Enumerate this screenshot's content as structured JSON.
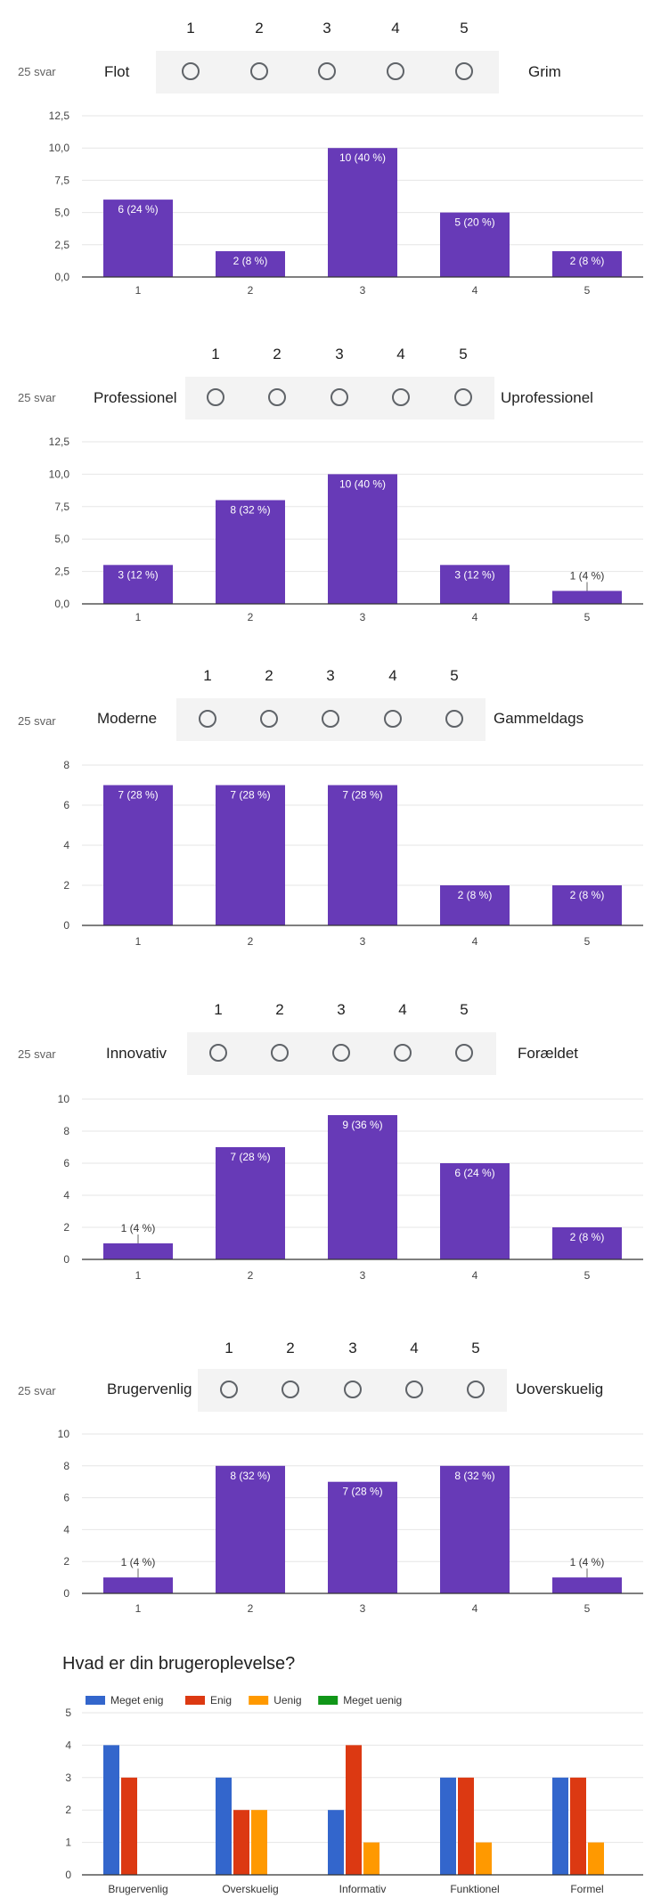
{
  "response_count": "25 svar",
  "scale_numbers": [
    "1",
    "2",
    "3",
    "4",
    "5"
  ],
  "questions": [
    {
      "left_label": "Flot",
      "right_label": "Grim",
      "chart_data": {
        "type": "bar",
        "categories": [
          "1",
          "2",
          "3",
          "4",
          "5"
        ],
        "values": [
          6,
          2,
          10,
          5,
          2
        ],
        "data_labels": [
          "6 (24 %)",
          "2 (8 %)",
          "10 (40 %)",
          "5 (20 %)",
          "2 (8 %)"
        ],
        "ylim": [
          0,
          12.5
        ],
        "yticks": [
          "0,0",
          "2,5",
          "5,0",
          "7,5",
          "10,0",
          "12,5"
        ],
        "grid": true
      }
    },
    {
      "left_label": "Professionel",
      "right_label": "Uprofessionel",
      "chart_data": {
        "type": "bar",
        "categories": [
          "1",
          "2",
          "3",
          "4",
          "5"
        ],
        "values": [
          3,
          8,
          10,
          3,
          1
        ],
        "data_labels": [
          "3 (12 %)",
          "8 (32 %)",
          "10 (40 %)",
          "3 (12 %)",
          "1 (4 %)"
        ],
        "ylim": [
          0,
          12.5
        ],
        "yticks": [
          "0,0",
          "2,5",
          "5,0",
          "7,5",
          "10,0",
          "12,5"
        ],
        "grid": true
      }
    },
    {
      "left_label": "Moderne",
      "right_label": "Gammeldags",
      "chart_data": {
        "type": "bar",
        "categories": [
          "1",
          "2",
          "3",
          "4",
          "5"
        ],
        "values": [
          7,
          7,
          7,
          2,
          2
        ],
        "data_labels": [
          "7 (28 %)",
          "7 (28 %)",
          "7 (28 %)",
          "2 (8 %)",
          "2 (8 %)"
        ],
        "ylim": [
          0,
          8
        ],
        "yticks": [
          "0",
          "2",
          "4",
          "6",
          "8"
        ],
        "grid": true
      }
    },
    {
      "left_label": "Innovativ",
      "right_label": "Forældet",
      "chart_data": {
        "type": "bar",
        "categories": [
          "1",
          "2",
          "3",
          "4",
          "5"
        ],
        "values": [
          1,
          7,
          9,
          6,
          2
        ],
        "data_labels": [
          "1 (4 %)",
          "7 (28 %)",
          "9 (36 %)",
          "6 (24 %)",
          "2 (8 %)"
        ],
        "ylim": [
          0,
          10
        ],
        "yticks": [
          "0",
          "2",
          "4",
          "6",
          "8",
          "10"
        ],
        "grid": true
      }
    },
    {
      "left_label": "Brugervenlig",
      "right_label": "Uoverskuelig",
      "chart_data": {
        "type": "bar",
        "categories": [
          "1",
          "2",
          "3",
          "4",
          "5"
        ],
        "values": [
          1,
          8,
          7,
          8,
          1
        ],
        "data_labels": [
          "1 (4 %)",
          "8 (32 %)",
          "7 (28 %)",
          "8 (32 %)",
          "1 (4 %)"
        ],
        "ylim": [
          0,
          10
        ],
        "yticks": [
          "0",
          "2",
          "4",
          "6",
          "8",
          "10"
        ],
        "grid": true
      }
    }
  ],
  "bar_color": "#673ab7",
  "final_chart": {
    "title": "Hvad er din brugeroplevelse?",
    "chart_data": {
      "type": "bar",
      "categories": [
        "Brugervenlig",
        "Overskuelig",
        "Informativ",
        "Funktionel",
        "Formel"
      ],
      "series": [
        {
          "name": "Meget enig",
          "color": "#3366cc",
          "values": [
            4,
            3,
            2,
            3,
            3
          ]
        },
        {
          "name": "Enig",
          "color": "#dc3912",
          "values": [
            3,
            2,
            4,
            3,
            3
          ]
        },
        {
          "name": "Uenig",
          "color": "#ff9900",
          "values": [
            0,
            2,
            1,
            1,
            1
          ]
        },
        {
          "name": "Meget uenig",
          "color": "#109618",
          "values": [
            0,
            0,
            0,
            0,
            0
          ]
        }
      ],
      "ylim": [
        0,
        5
      ],
      "yticks": [
        "0",
        "1",
        "2",
        "3",
        "4",
        "5"
      ],
      "legend": "top-left",
      "grid": true
    }
  }
}
